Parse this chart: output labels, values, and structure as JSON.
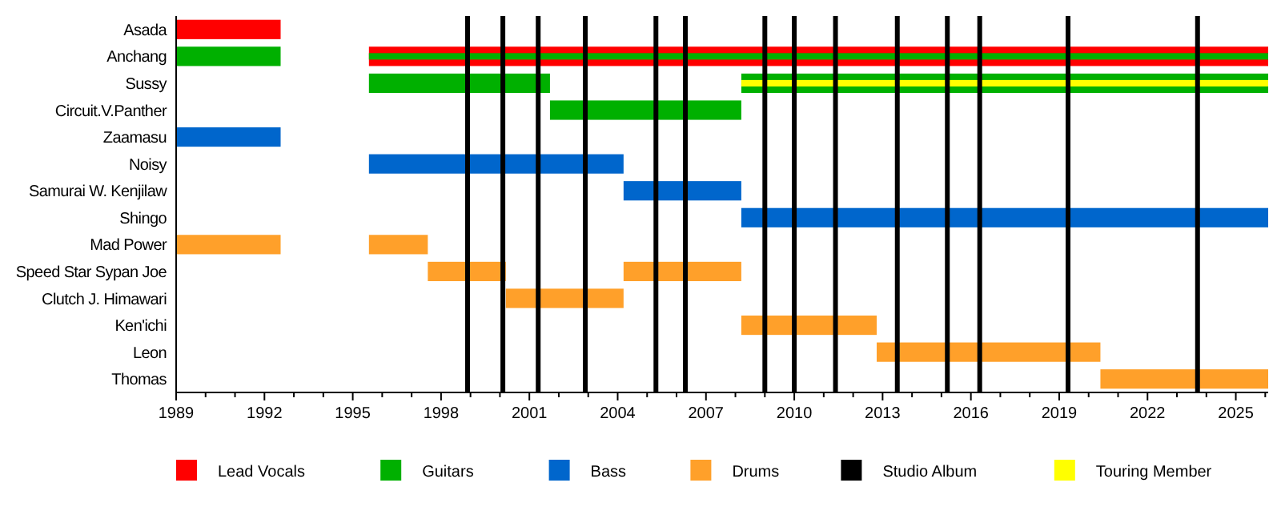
{
  "chart_data": {
    "type": "bar",
    "orientation": "horizontal",
    "categories": [
      "Asada",
      "Anchang",
      "Sussy",
      "Circuit.V.Panther",
      "Zaamasu",
      "Noisy",
      "Samurai W. Kenjilaw",
      "Shingo",
      "Mad Power",
      "Speed Star Sypan Joe",
      "Clutch J. Himawari",
      "Ken'ichi",
      "Leon",
      "Thomas"
    ],
    "series": [
      {
        "name": "Lead Vocals",
        "color": "#ff0000",
        "base": [
          1989,
          1995.55,
          null,
          null,
          null,
          null,
          null,
          null,
          null,
          null,
          null,
          null,
          null,
          null
        ],
        "values": [
          3.55,
          30.55,
          null,
          null,
          null,
          null,
          null,
          null,
          null,
          null,
          null,
          null,
          null,
          null
        ]
      },
      {
        "name": "Guitars",
        "color": "#00b000",
        "base": [
          null,
          1989,
          1995.55,
          2001.7,
          null,
          null,
          null,
          null,
          null,
          null,
          null,
          null,
          null,
          null
        ],
        "values": [
          null,
          3.55,
          6.15,
          6.5,
          null,
          null,
          null,
          null,
          null,
          null,
          null,
          null,
          null,
          null
        ]
      },
      {
        "color": "#00b000",
        "base": [
          null,
          1995.55,
          2008.2,
          null,
          null,
          null,
          null,
          null,
          null,
          null,
          null,
          null,
          null,
          null
        ],
        "values": [
          null,
          30.55,
          17.9,
          null,
          null,
          null,
          null,
          null,
          null,
          null,
          null,
          null,
          null,
          null
        ]
      },
      {
        "name": "Bass",
        "color": "#0066cc",
        "base": [
          null,
          null,
          null,
          null,
          1989,
          1995.55,
          2004.2,
          2008.2,
          null,
          null,
          null,
          null,
          null,
          null
        ],
        "values": [
          null,
          null,
          null,
          null,
          3.55,
          8.65,
          4,
          17.9,
          null,
          null,
          null,
          null,
          null,
          null
        ]
      },
      {
        "name": "Drums",
        "color": "#ffa02a",
        "base": [
          null,
          null,
          null,
          null,
          null,
          null,
          null,
          null,
          1989,
          1997.55,
          2000.2,
          2008.2,
          2012.8,
          2020.4
        ],
        "values": [
          null,
          null,
          null,
          null,
          null,
          null,
          null,
          null,
          3.55,
          2.65,
          4,
          4.6,
          7.6,
          5.7
        ]
      },
      {
        "color": "#ffa02a",
        "base": [
          null,
          null,
          null,
          null,
          null,
          null,
          null,
          null,
          1995.55,
          2004.2,
          null,
          null,
          null,
          null
        ],
        "values": [
          null,
          null,
          null,
          null,
          null,
          null,
          null,
          null,
          2,
          4,
          null,
          null,
          null,
          null
        ]
      },
      {
        "name": "Touring Member",
        "color": "#ffff00",
        "base": [
          null,
          null,
          2008.2,
          null,
          null,
          null,
          null,
          null,
          null,
          null,
          null,
          null,
          null,
          null
        ],
        "values": [
          null,
          null,
          17.9,
          null,
          null,
          null,
          null,
          null,
          null,
          null,
          null,
          null,
          null,
          null
        ]
      }
    ],
    "ref_lines": [
      {
        "axis": "x",
        "value": 1998.9,
        "label": "Studio Album",
        "color": "#000000"
      },
      {
        "axis": "x",
        "value": 2000.1,
        "color": "#000000"
      },
      {
        "axis": "x",
        "value": 2001.3,
        "color": "#000000"
      },
      {
        "axis": "x",
        "value": 2002.9,
        "color": "#000000"
      },
      {
        "axis": "x",
        "value": 2005.3,
        "color": "#000000"
      },
      {
        "axis": "x",
        "value": 2006.3,
        "color": "#000000"
      },
      {
        "axis": "x",
        "value": 2009.0,
        "color": "#000000"
      },
      {
        "axis": "x",
        "value": 2010.0,
        "color": "#000000"
      },
      {
        "axis": "x",
        "value": 2011.4,
        "color": "#000000"
      },
      {
        "axis": "x",
        "value": 2013.5,
        "color": "#000000"
      },
      {
        "axis": "x",
        "value": 2015.2,
        "color": "#000000"
      },
      {
        "axis": "x",
        "value": 2016.3,
        "color": "#000000"
      },
      {
        "axis": "x",
        "value": 2019.3,
        "color": "#000000"
      },
      {
        "axis": "x",
        "value": 2023.7,
        "color": "#000000"
      }
    ],
    "xlim": [
      1989,
      2026.1
    ],
    "xticks": [
      1989,
      {
        "value": 1990,
        "label": null
      },
      {
        "value": 1991,
        "label": null
      },
      1992,
      {
        "value": 1993,
        "label": null
      },
      {
        "value": 1994,
        "label": null
      },
      1995,
      {
        "value": 1996,
        "label": null
      },
      {
        "value": 1997,
        "label": null
      },
      1998,
      {
        "value": 1999,
        "label": null
      },
      {
        "value": 2000,
        "label": null
      },
      2001,
      {
        "value": 2002,
        "label": null
      },
      {
        "value": 2003,
        "label": null
      },
      2004,
      {
        "value": 2005,
        "label": null
      },
      {
        "value": 2006,
        "label": null
      },
      2007,
      {
        "value": 2008,
        "label": null
      },
      {
        "value": 2009,
        "label": null
      },
      2010,
      {
        "value": 2011,
        "label": null
      },
      {
        "value": 2012,
        "label": null
      },
      2013,
      {
        "value": 2014,
        "label": null
      },
      {
        "value": 2015,
        "label": null
      },
      2016,
      {
        "value": 2017,
        "label": null
      },
      {
        "value": 2018,
        "label": null
      },
      2019,
      {
        "value": 2020,
        "label": null
      },
      {
        "value": 2021,
        "label": null
      },
      2022,
      {
        "value": 2023,
        "label": null
      },
      {
        "value": 2024,
        "label": null
      },
      2025,
      {
        "value": 2026,
        "label": null
      }
    ],
    "grid": false,
    "legend": "bottom"
  }
}
